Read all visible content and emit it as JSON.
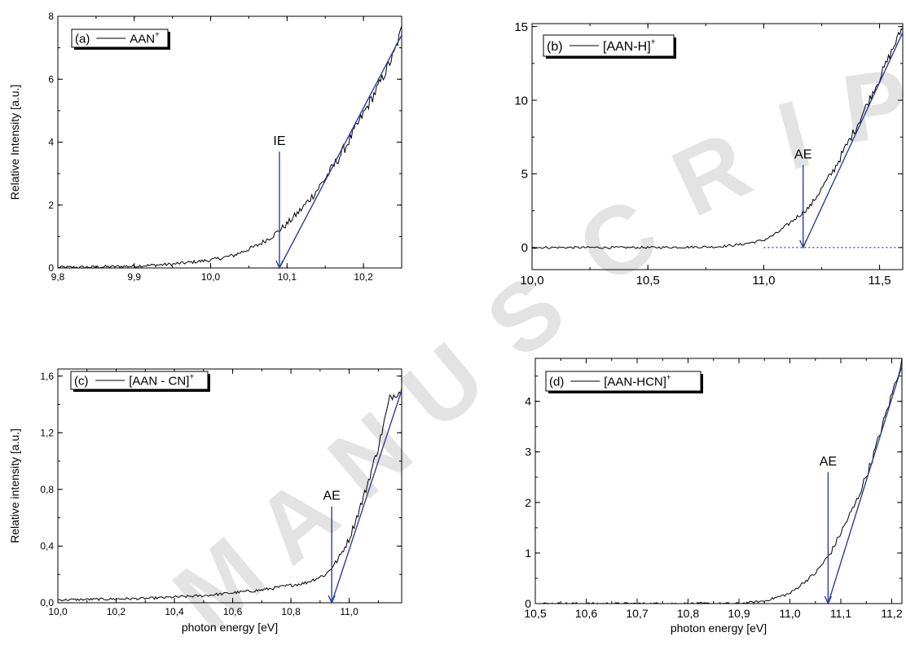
{
  "colors": {
    "fit_line": "#2b3f9e",
    "data_line": "#000000",
    "watermark": "#e3e3e3"
  },
  "watermark": {
    "letters": [
      "M",
      "A",
      "N",
      "U",
      "S",
      "C",
      "R",
      "I",
      "P"
    ]
  },
  "chart_data": [
    {
      "id": "a",
      "type": "line",
      "legend": {
        "prefix": "(a)",
        "label": "AAN",
        "sup": "+"
      },
      "ylabel": "Relative Intensity [a.u.]",
      "xlabel": "",
      "xlim": [
        9.8,
        10.25
      ],
      "ylim": [
        0,
        8
      ],
      "xticks": [
        9.8,
        9.9,
        10.0,
        10.1,
        10.2
      ],
      "xtick_labels": [
        "9,8",
        "9,9",
        "10,0",
        "10,1",
        "10,2"
      ],
      "yticks": [
        0,
        2,
        4,
        6,
        8
      ],
      "ytick_labels": [
        "0",
        "2",
        "4",
        "6",
        "8"
      ],
      "x_minor_step": 0.05,
      "y_minor_step": 1,
      "series": [
        {
          "values": [
            [
              9.8,
              0.02
            ],
            [
              9.85,
              0.03
            ],
            [
              9.9,
              0.06
            ],
            [
              9.95,
              0.12
            ],
            [
              10.0,
              0.25
            ],
            [
              10.03,
              0.4
            ],
            [
              10.06,
              0.7
            ],
            [
              10.08,
              1.0
            ],
            [
              10.1,
              1.4
            ],
            [
              10.12,
              1.9
            ],
            [
              10.14,
              2.5
            ],
            [
              10.16,
              3.2
            ],
            [
              10.18,
              4.0
            ],
            [
              10.2,
              4.9
            ],
            [
              10.22,
              5.8
            ],
            [
              10.24,
              6.8
            ],
            [
              10.25,
              7.6
            ]
          ],
          "noise": 0.13
        }
      ],
      "fit_line": [
        [
          10.09,
          0
        ],
        [
          10.25,
          7.4
        ]
      ],
      "marker": {
        "label": "IE",
        "x": 10.09,
        "y_top": 3.7,
        "y_bottom": 0
      }
    },
    {
      "id": "b",
      "type": "line",
      "legend": {
        "prefix": "(b)",
        "label": "[AAN-H]",
        "sup": "+"
      },
      "ylabel": "",
      "xlabel": "",
      "xlim": [
        10.0,
        11.6
      ],
      "ylim": [
        -1.5,
        15.2
      ],
      "xticks": [
        10.0,
        10.5,
        11.0,
        11.5
      ],
      "xtick_labels": [
        "10,0",
        "10,5",
        "11,0",
        "11,5"
      ],
      "yticks": [
        0,
        5,
        10,
        15
      ],
      "ytick_labels": [
        "0",
        "5",
        "10",
        "15"
      ],
      "x_minor_step": 0.25,
      "y_minor_step": 2.5,
      "series": [
        {
          "values": [
            [
              10.0,
              0.0
            ],
            [
              10.5,
              0.0
            ],
            [
              10.8,
              0.05
            ],
            [
              10.9,
              0.2
            ],
            [
              11.0,
              0.5
            ],
            [
              11.05,
              0.9
            ],
            [
              11.1,
              1.5
            ],
            [
              11.2,
              2.8
            ],
            [
              11.3,
              5.2
            ],
            [
              11.4,
              8.2
            ],
            [
              11.5,
              11.5
            ],
            [
              11.6,
              15.0
            ]
          ],
          "noise": 0.22
        }
      ],
      "fit_line": [
        [
          11.17,
          0
        ],
        [
          11.6,
          14.6
        ]
      ],
      "baseline": {
        "y": 0,
        "x_from": 11.0,
        "x_to": 11.6
      },
      "marker": {
        "label": "AE",
        "x": 11.17,
        "y_top": 5.6,
        "y_bottom": 0
      }
    },
    {
      "id": "c",
      "type": "line",
      "legend": {
        "prefix": "(c)",
        "label": "[AAN - CN]",
        "sup": "+"
      },
      "ylabel": "Relative intensity [a.u.]",
      "xlabel": "photon energy [eV]",
      "xlim": [
        10.0,
        11.18
      ],
      "ylim": [
        0,
        1.65
      ],
      "xticks": [
        10.0,
        10.2,
        10.4,
        10.6,
        10.8,
        11.0
      ],
      "xtick_labels": [
        "10,0",
        "10,2",
        "10,4",
        "10,6",
        "10,8",
        "11,0"
      ],
      "yticks": [
        0,
        0.4,
        0.8,
        1.2,
        1.6
      ],
      "ytick_labels": [
        "0,0",
        "0,4",
        "0,8",
        "1,2",
        "1,6"
      ],
      "x_minor_step": 0.1,
      "y_minor_step": 0.2,
      "series": [
        {
          "values": [
            [
              10.0,
              0.02
            ],
            [
              10.3,
              0.03
            ],
            [
              10.5,
              0.05
            ],
            [
              10.7,
              0.09
            ],
            [
              10.85,
              0.14
            ],
            [
              10.92,
              0.2
            ],
            [
              10.96,
              0.3
            ],
            [
              11.0,
              0.45
            ],
            [
              11.05,
              0.75
            ],
            [
              11.1,
              1.1
            ],
            [
              11.14,
              1.45
            ],
            [
              11.18,
              1.5
            ]
          ],
          "noise": 0.022
        }
      ],
      "fit_line": [
        [
          10.94,
          0
        ],
        [
          11.18,
          1.5
        ]
      ],
      "marker": {
        "label": "AE",
        "x": 10.94,
        "y_top": 0.68,
        "y_bottom": 0
      }
    },
    {
      "id": "d",
      "type": "line",
      "legend": {
        "prefix": "(d)",
        "label": "[AAN-HCN]",
        "sup": "+"
      },
      "ylabel": "",
      "xlabel": "photon energy [eV]",
      "xlim": [
        10.5,
        11.22
      ],
      "ylim": [
        0,
        4.85
      ],
      "xticks": [
        10.5,
        10.6,
        10.7,
        10.8,
        10.9,
        11.0,
        11.1,
        11.2
      ],
      "xtick_labels": [
        "10,5",
        "10,6",
        "10,7",
        "10,8",
        "10,9",
        "11,0",
        "11,1",
        "11,2"
      ],
      "yticks": [
        0,
        1,
        2,
        3,
        4
      ],
      "ytick_labels": [
        "0",
        "1",
        "2",
        "3",
        "4"
      ],
      "x_minor_step": 0.05,
      "y_minor_step": 0.5,
      "series": [
        {
          "values": [
            [
              10.5,
              0.0
            ],
            [
              10.9,
              0.0
            ],
            [
              10.95,
              0.05
            ],
            [
              11.0,
              0.2
            ],
            [
              11.05,
              0.6
            ],
            [
              11.08,
              1.0
            ],
            [
              11.1,
              1.4
            ],
            [
              11.13,
              2.0
            ],
            [
              11.16,
              2.8
            ],
            [
              11.19,
              3.8
            ],
            [
              11.22,
              4.8
            ]
          ],
          "noise": 0.06
        }
      ],
      "fit_line": [
        [
          11.075,
          0
        ],
        [
          11.22,
          4.7
        ]
      ],
      "marker": {
        "label": "AE",
        "x": 11.075,
        "y_top": 2.6,
        "y_bottom": 0
      }
    }
  ]
}
